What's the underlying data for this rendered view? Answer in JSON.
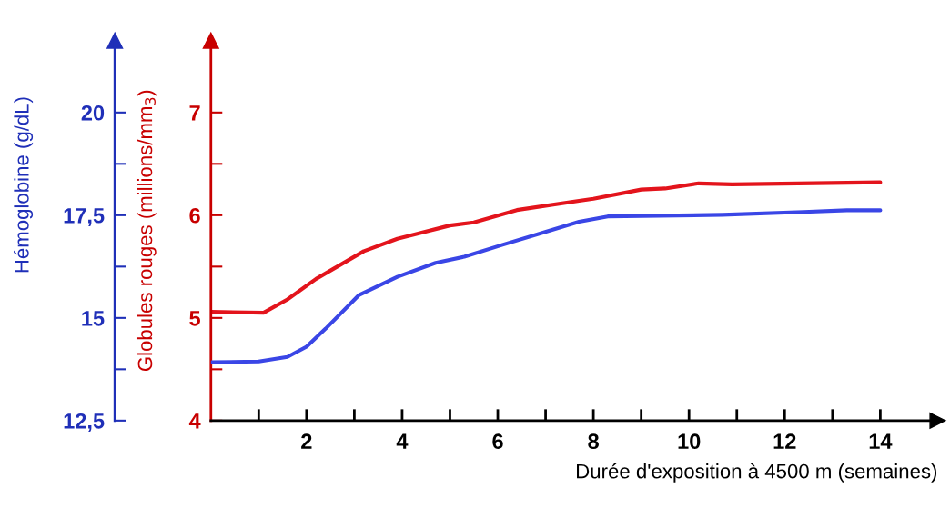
{
  "chart_data": {
    "type": "line",
    "xlabel": "Durée d'exposition à 4500 m (semaines)",
    "ylabel": "Globules rouges (millions/mm$_{3}$)",
    "y2label": "Hémoglobine (g/dL)",
    "xlim": [
      0,
      15.2
    ],
    "xticks": [
      {
        "value": 1,
        "label": null
      },
      2,
      {
        "value": 3,
        "label": null
      },
      4,
      {
        "value": 5,
        "label": null
      },
      6,
      {
        "value": 7,
        "label": null
      },
      8,
      {
        "value": 9,
        "label": null
      },
      10,
      {
        "value": 11,
        "label": null
      },
      12,
      {
        "value": 13,
        "label": null
      },
      14
    ],
    "ylim": [
      4,
      7.7
    ],
    "yticks": [
      4,
      {
        "value": 4.5,
        "label": null
      },
      5,
      {
        "value": 5.5,
        "label": null
      },
      6,
      {
        "value": 6.5,
        "label": null
      },
      7
    ],
    "y2lim": [
      12.5,
      21.75
    ],
    "y2ticks": [
      {
        "value": 12.5,
        "label": "12,5"
      },
      {
        "value": 13.75,
        "label": null
      },
      15,
      {
        "value": 16.25,
        "label": null
      },
      {
        "value": 17.5,
        "label": "17,5"
      },
      {
        "value": 18.75,
        "label": null
      },
      20
    ],
    "series": [
      {
        "color": "#e3141c",
        "x": [
          0,
          1.1,
          1.6,
          2.2,
          3.2,
          3.9,
          5.0,
          5.5,
          6.4,
          7.7,
          8.0,
          9.0,
          9.5,
          10.2,
          10.9,
          14
        ],
        "values": [
          5.06,
          5.05,
          5.18,
          5.38,
          5.65,
          5.77,
          5.9,
          5.93,
          6.05,
          6.14,
          6.16,
          6.25,
          6.26,
          6.31,
          6.3,
          6.32
        ]
      },
      {
        "color": "#3a46e6",
        "axis": "y2",
        "x": [
          0,
          1.0,
          1.6,
          2.0,
          2.4,
          3.1,
          3.9,
          4.7,
          5.3,
          6.1,
          7.7,
          8.3,
          10.7,
          12.4,
          13.3,
          14
        ],
        "values": [
          13.92,
          13.94,
          14.05,
          14.3,
          14.74,
          15.56,
          16.0,
          16.34,
          16.49,
          16.78,
          17.34,
          17.47,
          17.51,
          17.58,
          17.62,
          17.62
        ]
      }
    ]
  }
}
